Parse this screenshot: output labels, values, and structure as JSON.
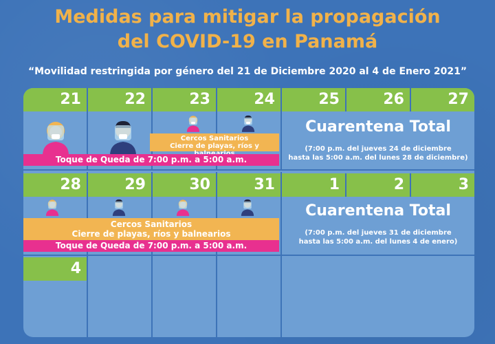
{
  "header": {
    "title_line1": "Medidas para mitigar la propagación",
    "title_line2": "del COVID-19 en Panamá",
    "subtitle": "“Movilidad restringida por género del 21 de Diciembre 2020 al 4 de Enero 2021”"
  },
  "week1": {
    "days": [
      "21",
      "22",
      "23",
      "24",
      "25",
      "26",
      "27"
    ],
    "curfew": "Toque de Queda de 7:00 p.m. a 5:00 a.m.",
    "sanitary_line1": "Cercos Sanitarios",
    "sanitary_line2": "Cierre de playas, ríos y balnearios",
    "quarantine_title": "Cuarentena Total",
    "quarantine_line1": "(7:00 p.m. del jueves 24 de diciembre",
    "quarantine_line2": "hasta las 5:00 a.m. del lunes 28 de diciembre)"
  },
  "week2": {
    "days": [
      "28",
      "29",
      "30",
      "31",
      "1",
      "2",
      "3"
    ],
    "curfew": "Toque de Queda de 7:00 p.m. a 5:00 a.m.",
    "sanitary_line1": "Cercos Sanitarios",
    "sanitary_line2": "Cierre de playas, ríos y balnearios",
    "quarantine_title": "Cuarentena Total",
    "quarantine_line1": "(7:00 p.m. del jueves 31 de diciembre",
    "quarantine_line2": "hasta las 5:00 a.m. del lunes 4 de enero)"
  },
  "week3": {
    "days": [
      "4"
    ]
  },
  "colors": {
    "background": "#3d73b8",
    "title": "#f1b24a",
    "day_header": "#87c04a",
    "cell": "#6e9fd4",
    "curfew": "#e8308f",
    "sanitary": "#f2b552"
  }
}
